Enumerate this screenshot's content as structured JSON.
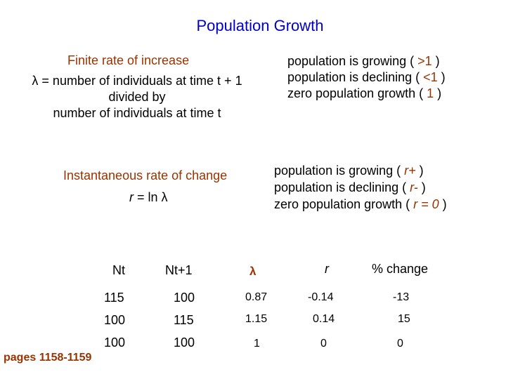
{
  "title": "Population Growth",
  "finite": {
    "heading": "Finite rate of increase",
    "definition": [
      "λ = number of individuals at time t + 1",
      "divided by",
      "number of individuals at time t"
    ]
  },
  "finite_conditions": [
    {
      "text": "population is growing  ( ",
      "value": ">1",
      "close": " )"
    },
    {
      "text": "population is declining  ( ",
      "value": "<1",
      "close": " )"
    },
    {
      "text": "zero population growth  ( ",
      "value": "1",
      "close": " )"
    }
  ],
  "instantaneous": {
    "heading": "Instantaneous rate of change",
    "formula_var": "r",
    "formula_rest": " = ln λ"
  },
  "instantaneous_conditions": [
    {
      "text": "population is growing  ( ",
      "value": "r+",
      "close": " )"
    },
    {
      "text": "population is declining  ( ",
      "value": "r-",
      "close": " )"
    },
    {
      "text": "zero population growth  ( ",
      "value": "r = 0",
      "close": " )"
    }
  ],
  "table": {
    "headers": {
      "nt": "Nt",
      "nt1": "Nt+1",
      "lambda": "λ",
      "r": "r",
      "pct": "% change"
    },
    "rows": [
      {
        "nt": "115",
        "nt1": "100",
        "lambda": "0.87",
        "r": "-0.14",
        "pct": "-13"
      },
      {
        "nt": "100",
        "nt1": "115",
        "lambda": "1.15",
        "r": "0.14",
        "pct": "15"
      },
      {
        "nt": "100",
        "nt1": "100",
        "lambda": "1",
        "r": "0",
        "pct": "0"
      }
    ]
  },
  "pages": "pages 1158-1159",
  "colors": {
    "title": "#0000CC",
    "accent": "#993300",
    "text": "#000000"
  }
}
